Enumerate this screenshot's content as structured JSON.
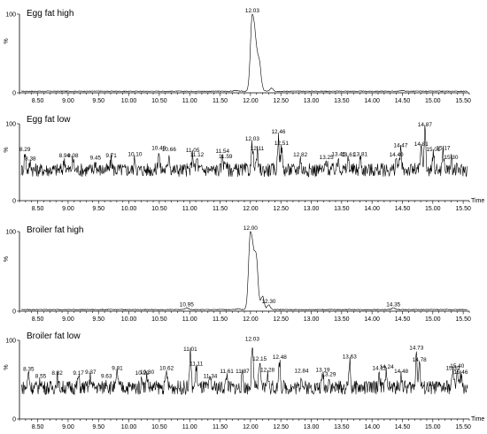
{
  "chart_data": [
    {
      "type": "line",
      "title": "Egg fat high",
      "y_axis_label": "%",
      "y_ticks": [
        "0",
        "100"
      ],
      "x_ticks": [
        "8.50",
        "9.00",
        "9.50",
        "10.00",
        "10.50",
        "11.00",
        "11.50",
        "12.00",
        "12.50",
        "13.00",
        "13.50",
        "14.00",
        "14.50",
        "15.00",
        "15.50"
      ],
      "x_unit_label": "",
      "xlim": [
        8.2,
        15.6
      ],
      "ylim": [
        0,
        100
      ],
      "baseline": 2,
      "noise": 0.5,
      "peaks": [
        {
          "x": 11.75,
          "y": 3
        },
        {
          "x": 12.03,
          "y": 100,
          "label": "12.03"
        },
        {
          "x": 12.15,
          "y": 22
        },
        {
          "x": 12.35,
          "y": 6
        },
        {
          "x": 14.5,
          "y": 3
        }
      ]
    },
    {
      "type": "line",
      "title": "Egg fat low",
      "y_axis_label": "%",
      "y_ticks": [
        "0",
        "100"
      ],
      "x_ticks": [
        "8.50",
        "9.00",
        "9.50",
        "10.00",
        "10.50",
        "11.00",
        "11.50",
        "12.00",
        "12.50",
        "13.00",
        "13.50",
        "14.00",
        "14.50",
        "15.00",
        "15.50"
      ],
      "x_unit_label": "Time",
      "xlim": [
        8.2,
        15.6
      ],
      "ylim": [
        0,
        100
      ],
      "baseline": 40,
      "noise": 9,
      "peaks": [
        {
          "x": 8.29,
          "y": 62,
          "label": "8.29"
        },
        {
          "x": 8.38,
          "y": 50,
          "label": "8.38"
        },
        {
          "x": 8.94,
          "y": 54,
          "label": "8.94"
        },
        {
          "x": 9.08,
          "y": 54,
          "label": "9.08"
        },
        {
          "x": 9.45,
          "y": 51,
          "label": "9.45"
        },
        {
          "x": 9.71,
          "y": 54,
          "label": "9.71"
        },
        {
          "x": 10.1,
          "y": 56,
          "label": "10.10"
        },
        {
          "x": 10.49,
          "y": 64,
          "label": "10.49"
        },
        {
          "x": 10.66,
          "y": 62,
          "label": "10.66"
        },
        {
          "x": 11.05,
          "y": 61,
          "label": "11.05"
        },
        {
          "x": 11.12,
          "y": 55,
          "label": "11.12"
        },
        {
          "x": 11.54,
          "y": 60,
          "label": "11.54"
        },
        {
          "x": 11.59,
          "y": 53,
          "label": "11.59"
        },
        {
          "x": 12.03,
          "y": 76,
          "label": "12.03"
        },
        {
          "x": 12.11,
          "y": 63,
          "label": "12.11"
        },
        {
          "x": 12.46,
          "y": 85,
          "label": "12.46"
        },
        {
          "x": 12.51,
          "y": 70,
          "label": "12.51"
        },
        {
          "x": 12.82,
          "y": 55,
          "label": "12.82"
        },
        {
          "x": 13.25,
          "y": 52,
          "label": "13.25"
        },
        {
          "x": 13.45,
          "y": 56,
          "label": "13.45"
        },
        {
          "x": 13.61,
          "y": 55,
          "label": "13.61"
        },
        {
          "x": 13.81,
          "y": 56,
          "label": "13.81"
        },
        {
          "x": 14.4,
          "y": 55,
          "label": "14.40"
        },
        {
          "x": 14.47,
          "y": 67,
          "label": "14.47"
        },
        {
          "x": 14.81,
          "y": 69,
          "label": "14.81"
        },
        {
          "x": 14.87,
          "y": 94,
          "label": "14.87"
        },
        {
          "x": 15.01,
          "y": 62,
          "label": "15.01"
        },
        {
          "x": 15.17,
          "y": 64,
          "label": "15.17"
        },
        {
          "x": 15.3,
          "y": 52,
          "label": "15.30"
        }
      ]
    },
    {
      "type": "line",
      "title": "Broiler fat high",
      "y_axis_label": "%",
      "y_ticks": [
        "0",
        "100"
      ],
      "x_ticks": [
        "8.50",
        "9.00",
        "9.50",
        "10.00",
        "10.50",
        "11.00",
        "11.50",
        "12.00",
        "12.50",
        "13.00",
        "13.50",
        "14.00",
        "14.50",
        "15.00",
        "15.50"
      ],
      "x_unit_label": "",
      "xlim": [
        8.2,
        15.6
      ],
      "ylim": [
        0,
        100
      ],
      "baseline": 2,
      "noise": 0.5,
      "peaks": [
        {
          "x": 10.95,
          "y": 4,
          "label": "10.95"
        },
        {
          "x": 11.8,
          "y": 3
        },
        {
          "x": 12.0,
          "y": 100,
          "label": "12.00"
        },
        {
          "x": 12.1,
          "y": 38
        },
        {
          "x": 12.2,
          "y": 18
        },
        {
          "x": 12.3,
          "y": 8,
          "label": "12.30"
        },
        {
          "x": 14.35,
          "y": 4,
          "label": "14.35"
        }
      ]
    },
    {
      "type": "line",
      "title": "Broiler fat low",
      "y_axis_label": "%",
      "y_ticks": [
        "0",
        "100"
      ],
      "x_ticks": [
        "8.50",
        "9.00",
        "9.50",
        "10.00",
        "10.50",
        "11.00",
        "11.50",
        "12.00",
        "12.50",
        "13.00",
        "13.50",
        "14.00",
        "14.50",
        "15.00",
        "15.50"
      ],
      "x_unit_label": "Time",
      "xlim": [
        8.2,
        15.6
      ],
      "ylim": [
        0,
        100
      ],
      "baseline": 40,
      "noise": 9,
      "peaks": [
        {
          "x": 8.35,
          "y": 59,
          "label": "8.35"
        },
        {
          "x": 8.55,
          "y": 50,
          "label": "8.55"
        },
        {
          "x": 8.82,
          "y": 54,
          "label": "8.82"
        },
        {
          "x": 9.17,
          "y": 54,
          "label": "9.17"
        },
        {
          "x": 9.37,
          "y": 55,
          "label": "9.37"
        },
        {
          "x": 9.63,
          "y": 50,
          "label": "9.63"
        },
        {
          "x": 9.81,
          "y": 60,
          "label": "9.81"
        },
        {
          "x": 10.22,
          "y": 54,
          "label": "10.22"
        },
        {
          "x": 10.3,
          "y": 55,
          "label": "10.30"
        },
        {
          "x": 10.62,
          "y": 60,
          "label": "10.62"
        },
        {
          "x": 11.01,
          "y": 84,
          "label": "11.01"
        },
        {
          "x": 11.11,
          "y": 66,
          "label": "11.11"
        },
        {
          "x": 11.34,
          "y": 50,
          "label": "11.34"
        },
        {
          "x": 11.61,
          "y": 56,
          "label": "11.61"
        },
        {
          "x": 11.87,
          "y": 56,
          "label": "11.87"
        },
        {
          "x": 12.03,
          "y": 97,
          "label": "12.03"
        },
        {
          "x": 12.15,
          "y": 72,
          "label": "12.15"
        },
        {
          "x": 12.28,
          "y": 58,
          "label": "12.28"
        },
        {
          "x": 12.48,
          "y": 74,
          "label": "12.48"
        },
        {
          "x": 12.84,
          "y": 57,
          "label": "12.84"
        },
        {
          "x": 13.19,
          "y": 58,
          "label": "13.19"
        },
        {
          "x": 13.29,
          "y": 52,
          "label": "13.29"
        },
        {
          "x": 13.63,
          "y": 75,
          "label": "13.63"
        },
        {
          "x": 14.12,
          "y": 60,
          "label": "14.12"
        },
        {
          "x": 14.24,
          "y": 62,
          "label": "14.24"
        },
        {
          "x": 14.48,
          "y": 56,
          "label": "14.48"
        },
        {
          "x": 14.73,
          "y": 86,
          "label": "14.73"
        },
        {
          "x": 14.78,
          "y": 71,
          "label": "14.78"
        },
        {
          "x": 15.33,
          "y": 60,
          "label": "15.33"
        },
        {
          "x": 15.4,
          "y": 63,
          "label": "15.40"
        },
        {
          "x": 15.46,
          "y": 55,
          "label": "15.46"
        }
      ]
    }
  ]
}
